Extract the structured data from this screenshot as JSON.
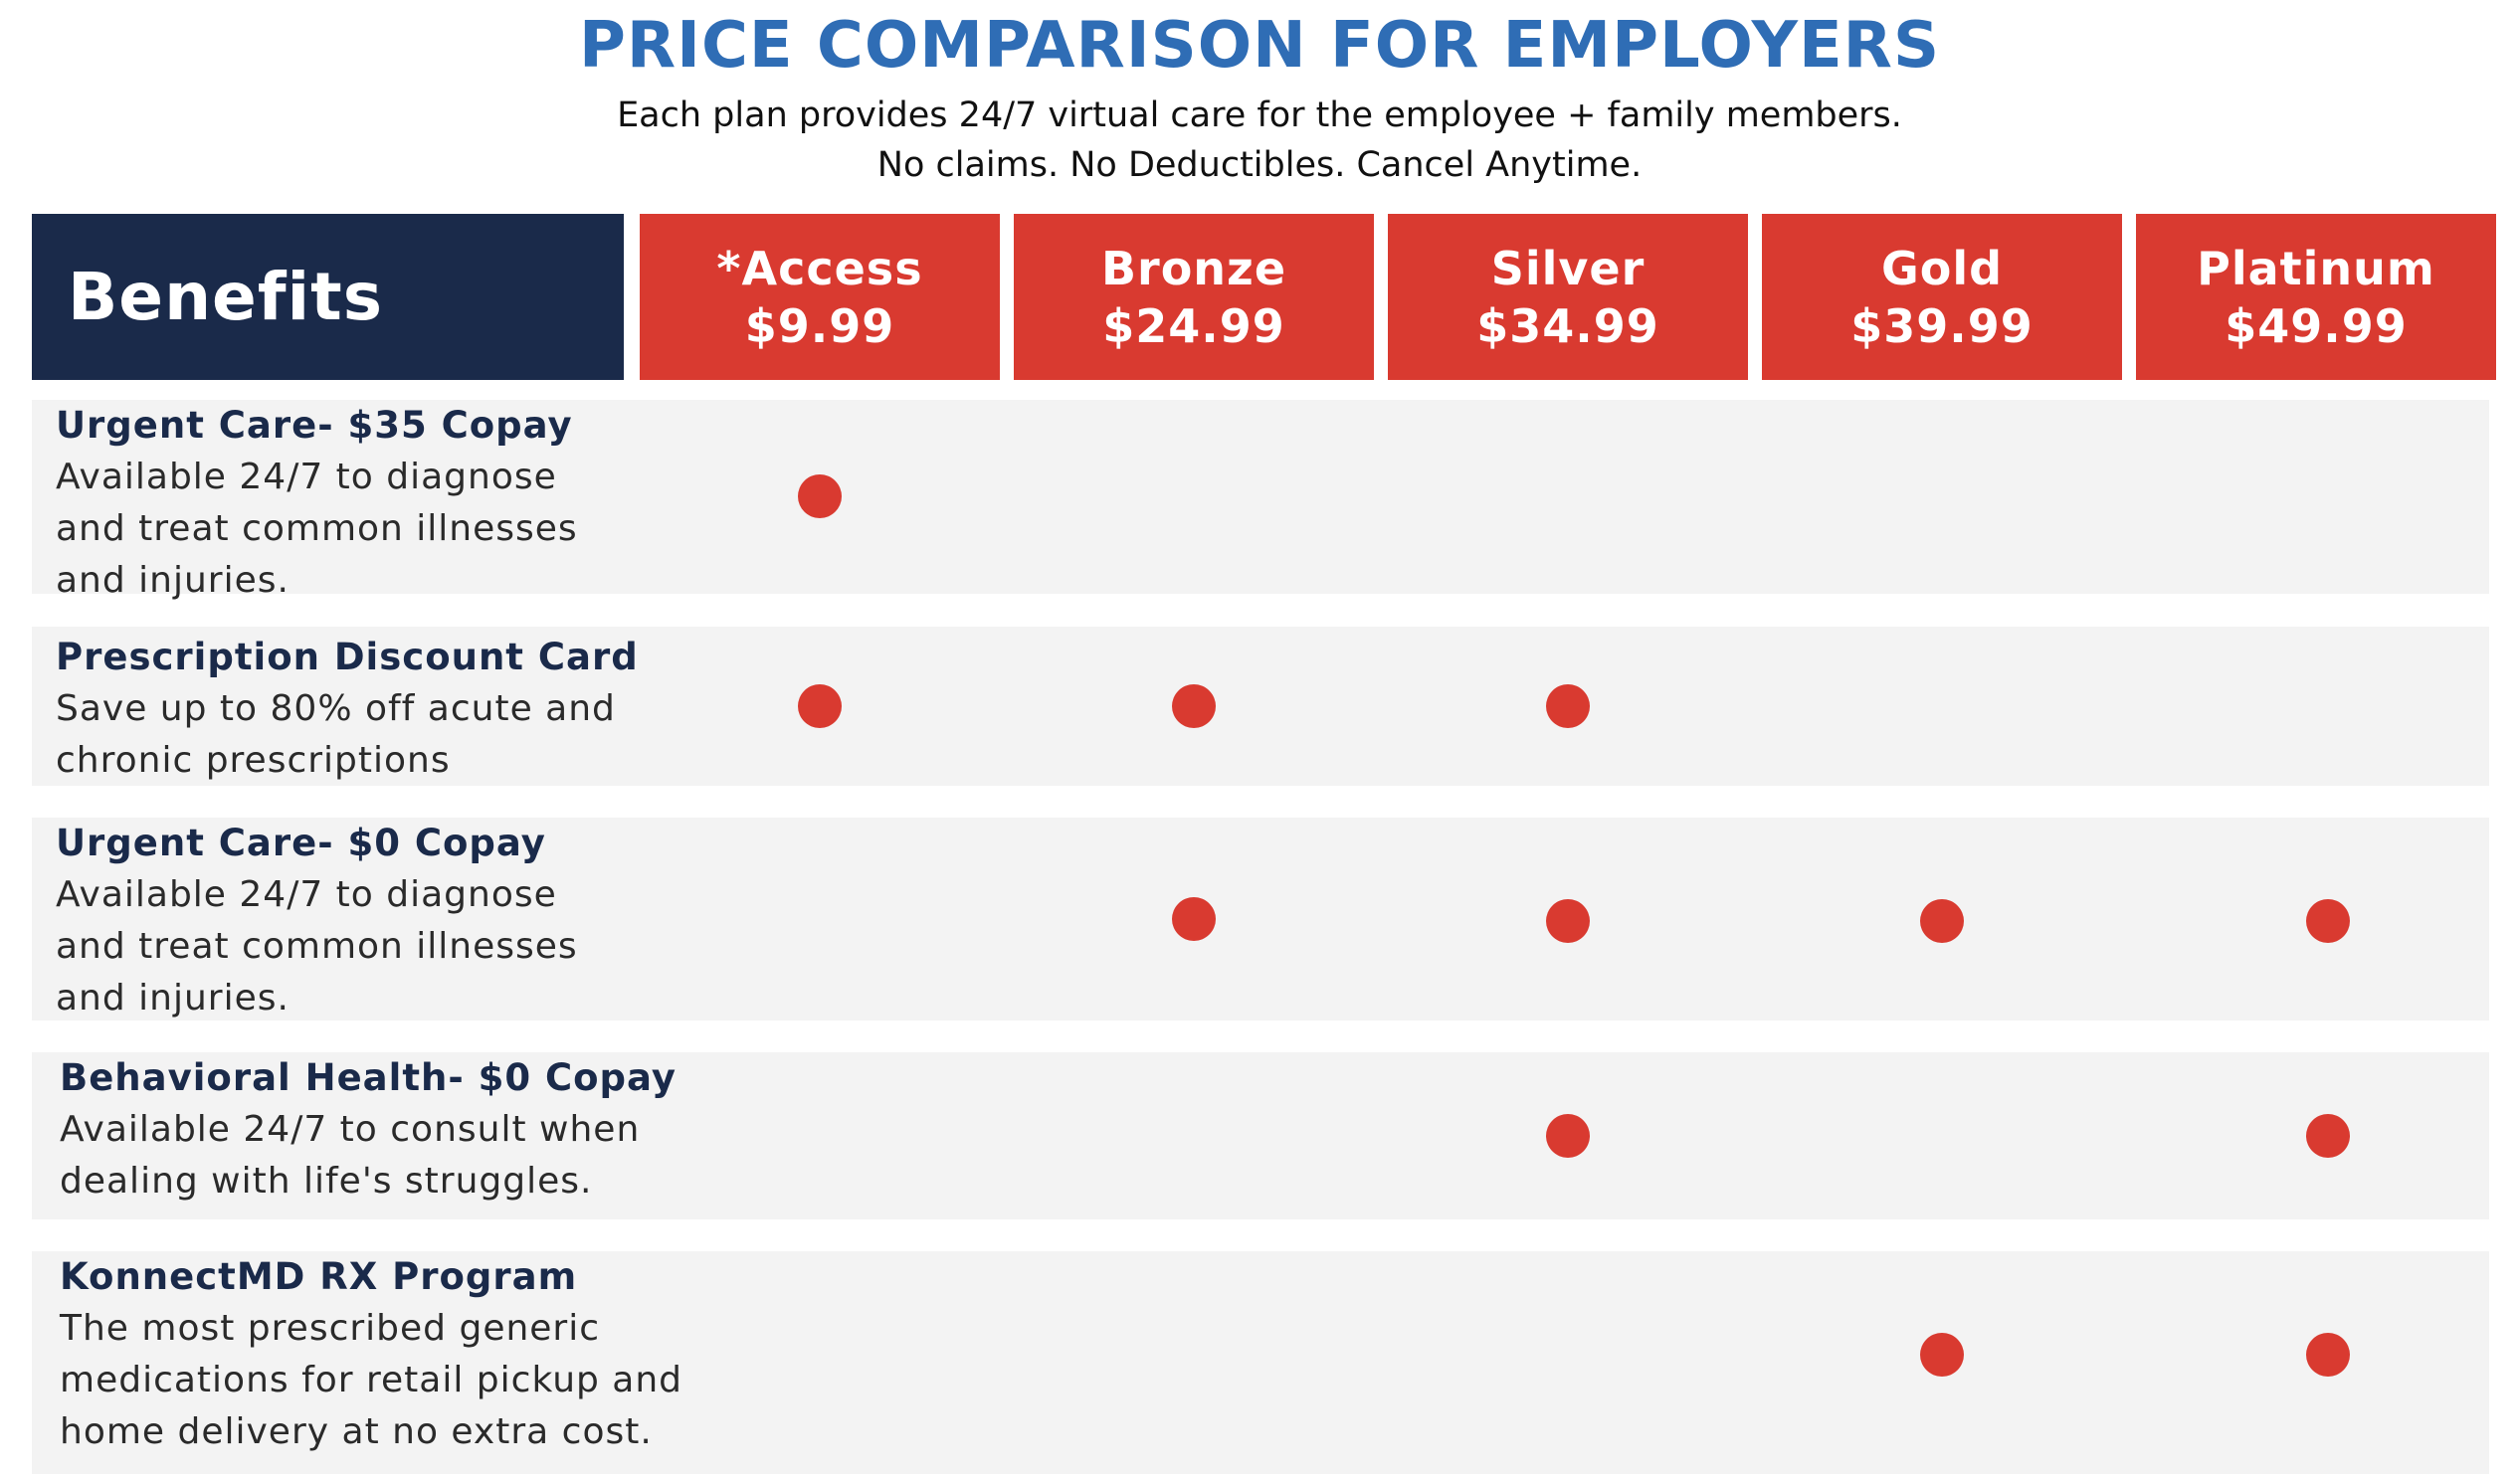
{
  "page": {
    "title": "PRICE COMPARISON FOR EMPLOYERS",
    "subtitle_line1": "Each plan provides 24/7 virtual care for the employee + family members.",
    "subtitle_line2": "No claims. No Deductibles. Cancel Anytime."
  },
  "table": {
    "benefits_header": "Benefits",
    "plans": [
      {
        "name": "*Access",
        "price": "$9.99"
      },
      {
        "name": "Bronze",
        "price": "$24.99"
      },
      {
        "name": "Silver",
        "price": "$34.99"
      },
      {
        "name": "Gold",
        "price": "$39.99"
      },
      {
        "name": "Platinum",
        "price": "$49.99"
      }
    ],
    "rows": [
      {
        "title": "Urgent Care- $35 Copay",
        "description": "Available 24/7 to diagnose\nand treat common illnesses\nand injuries.",
        "included": [
          true,
          false,
          false,
          false,
          false
        ]
      },
      {
        "title": "Prescription Discount Card",
        "description": "Save up to 80% off acute and\nchronic prescriptions",
        "included": [
          true,
          true,
          true,
          false,
          false
        ]
      },
      {
        "title": "Urgent Care- $0 Copay",
        "description": "Available 24/7 to diagnose\nand treat common illnesses\nand injuries.",
        "included": [
          false,
          true,
          true,
          true,
          true
        ]
      },
      {
        "title": "Behavioral Health- $0 Copay",
        "description": "Available 24/7 to consult when\ndealing with life's struggles.",
        "included": [
          false,
          false,
          true,
          false,
          true
        ]
      },
      {
        "title": "KonnectMD RX Program",
        "description": "The most prescribed generic\nmedications for retail pickup and\nhome delivery at no extra cost.",
        "included": [
          false,
          false,
          false,
          true,
          true
        ]
      }
    ]
  },
  "colors": {
    "title_blue": "#2f6db5",
    "navy": "#1a2a4a",
    "accent_red": "#d93a30",
    "row_gray": "#f3f3f3"
  }
}
